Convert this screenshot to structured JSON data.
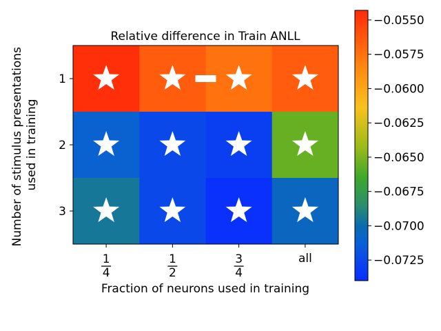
{
  "chart_data": {
    "type": "heatmap",
    "title": "Relative difference in Train ANLL",
    "xlabel": "Fraction of neurons used in training",
    "ylabel_line1": "Number of stimulus presentations",
    "ylabel_line2": "used in training",
    "x_categories": [
      {
        "kind": "fraction",
        "num": "1",
        "den": "4"
      },
      {
        "kind": "fraction",
        "num": "1",
        "den": "2"
      },
      {
        "kind": "fraction",
        "num": "3",
        "den": "4"
      },
      {
        "kind": "text",
        "label": "all"
      }
    ],
    "y_categories": [
      "1",
      "2",
      "3"
    ],
    "values": [
      [
        -0.0545,
        -0.0565,
        -0.0575,
        -0.0565
      ],
      [
        -0.071,
        -0.0725,
        -0.073,
        -0.0655
      ],
      [
        -0.0695,
        -0.0725,
        -0.0738,
        -0.0705
      ]
    ],
    "markers": [
      [
        "star",
        "star-dash-star",
        null,
        "star"
      ],
      [
        "star",
        "star",
        "star",
        "star"
      ],
      [
        "star",
        "star",
        "star",
        "star"
      ]
    ],
    "colorbar": {
      "min": -0.074,
      "max": -0.0543,
      "ticks": [
        -0.055,
        -0.0575,
        -0.06,
        -0.0625,
        -0.065,
        -0.0675,
        -0.07,
        -0.0725
      ],
      "tick_labels": [
        "−0.0550",
        "−0.0575",
        "−0.0600",
        "−0.0625",
        "−0.0650",
        "−0.0675",
        "−0.0700",
        "−0.0725"
      ]
    }
  }
}
